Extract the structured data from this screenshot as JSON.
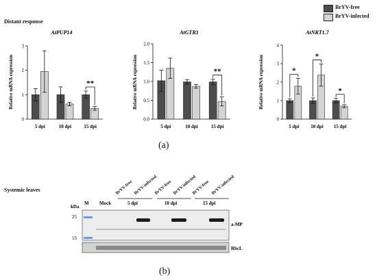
{
  "legend": {
    "items": [
      {
        "label": "BrYV-free",
        "color": "#4d4d4d"
      },
      {
        "label": "BrYV-infected",
        "color": "#d4d4d4"
      }
    ]
  },
  "panel_a": {
    "section_title": "Distant response",
    "caption": "(a)"
  },
  "panel_b": {
    "section_title": "Systemic leaves",
    "caption": "(b)",
    "lane_labels": [
      "BrYV-free",
      "BrYV-infected",
      "BrYV-free",
      "BrYV-infected",
      "BrYV-free",
      "BrYV-infected"
    ],
    "marker_label": "M",
    "kda_label": "kDa",
    "mock_label": "Mock",
    "group_labels": [
      "5 dpi",
      "10 dpi",
      "15 dpi"
    ],
    "size_markers": [
      "25",
      "15"
    ],
    "band_labels": [
      "a-MP",
      "RbcL"
    ]
  },
  "chart_data": [
    {
      "type": "bar",
      "title": "AtPUP14",
      "ylabel": "Relative mRNA expression",
      "categories": [
        "5 dpi",
        "10 dpi",
        "15 dpi"
      ],
      "ylim": [
        0,
        3
      ],
      "yticks": [
        "0",
        "1",
        "2",
        "3"
      ],
      "series": [
        {
          "name": "BrYV-free",
          "values": [
            1.0,
            1.0,
            1.0
          ],
          "errors": [
            0.25,
            0.32,
            0.15
          ]
        },
        {
          "name": "BrYV-infected",
          "values": [
            1.95,
            0.62,
            0.44
          ],
          "errors": [
            0.85,
            0.07,
            0.08
          ]
        }
      ],
      "significance": [
        {
          "category_index": 2,
          "label": "**"
        }
      ]
    },
    {
      "type": "bar",
      "title": "AtGTR1",
      "ylabel": "Relative mRNA expression",
      "categories": [
        "5 dpi",
        "10 dpi",
        "15 dpi"
      ],
      "ylim": [
        0,
        2.0
      ],
      "yticks": [
        "0.0",
        "0.5",
        "1.0",
        "1.5",
        "2.0"
      ],
      "series": [
        {
          "name": "BrYV-free",
          "values": [
            1.02,
            0.99,
            0.99
          ],
          "errors": [
            0.28,
            0.06,
            0.07
          ]
        },
        {
          "name": "BrYV-infected",
          "values": [
            1.35,
            0.87,
            0.47
          ],
          "errors": [
            0.27,
            0.05,
            0.12
          ]
        }
      ],
      "significance": [
        {
          "category_index": 2,
          "label": "**"
        }
      ]
    },
    {
      "type": "bar",
      "title": "AtNRT1.7",
      "ylabel": "Relative mRNA expression",
      "categories": [
        "5 dpi",
        "10 dpi",
        "15 dpi"
      ],
      "ylim": [
        0,
        4
      ],
      "yticks": [
        "0",
        "1",
        "2",
        "3",
        "4"
      ],
      "series": [
        {
          "name": "BrYV-free",
          "values": [
            1.0,
            1.0,
            1.0
          ],
          "errors": [
            0.1,
            0.15,
            0.12
          ]
        },
        {
          "name": "BrYV-infected",
          "values": [
            1.78,
            2.38,
            0.7
          ],
          "errors": [
            0.42,
            0.6,
            0.08
          ]
        }
      ],
      "significance": [
        {
          "category_index": 0,
          "label": "*"
        },
        {
          "category_index": 1,
          "label": "*"
        },
        {
          "category_index": 2,
          "label": "*"
        }
      ]
    }
  ]
}
